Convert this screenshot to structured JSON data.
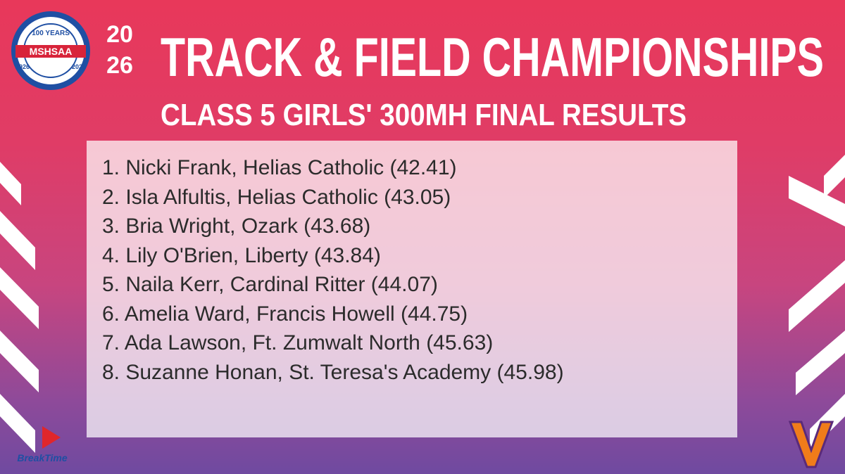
{
  "logo": {
    "ring_text": "100 YEARS",
    "start_year": "1926",
    "name": "MSHSAA",
    "end_year": "2026"
  },
  "header": {
    "year_lines": [
      "20",
      "26"
    ],
    "title": "TRACK & FIELD CHAMPIONSHIPS",
    "subtitle": "CLASS 5 GIRLS' 300MH FINAL RESULTS"
  },
  "results": [
    "1. Nicki Frank, Helias Catholic (42.41)",
    "2. Isla Alfultis, Helias Catholic (43.05)",
    "3. Bria Wright, Ozark (43.68)",
    "4. Lily O'Brien, Liberty (43.84)",
    "5. Naila Kerr, Cardinal Ritter (44.07)",
    "6. Amelia Ward, Francis Howell (44.75)",
    "7. Ada Lawson, Ft. Zumwalt North (45.63)",
    "8. Suzanne Honan, St. Teresa's Academy (45.98)"
  ],
  "sponsor": "BreakTime"
}
